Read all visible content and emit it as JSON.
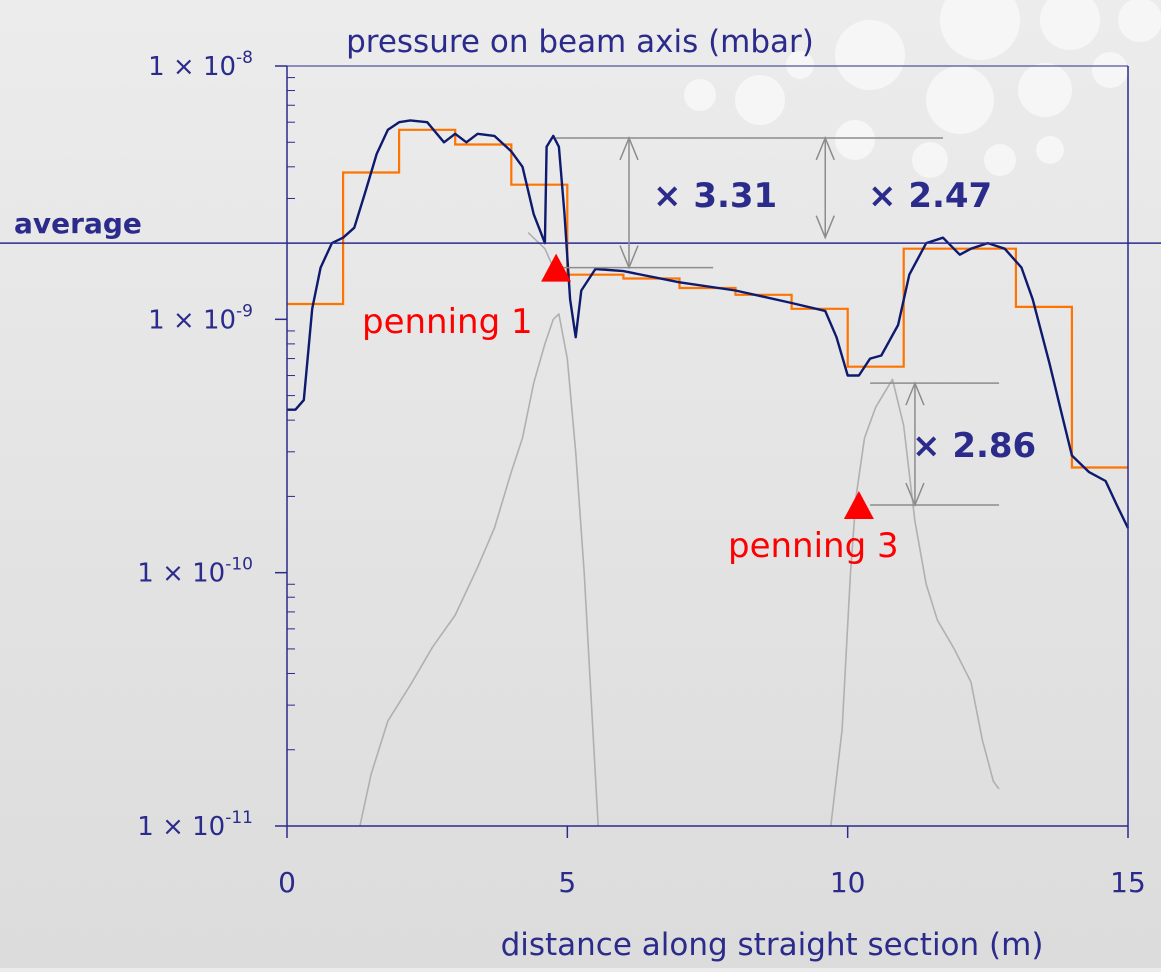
{
  "chart_data": {
    "type": "line",
    "title": "pressure on beam axis (mbar)",
    "xlabel": "distance along straight section (m)",
    "ylabel": "",
    "xlim": [
      0,
      15
    ],
    "ylim_log": [
      1e-11,
      1e-08
    ],
    "y_scale": "log",
    "x_ticks": [
      "0",
      "5",
      "10",
      "15"
    ],
    "y_ticks": [
      {
        "value": 1e-08,
        "base": "1 × 10",
        "exp": "-8"
      },
      {
        "value": 1e-09,
        "base": "1 × 10",
        "exp": "-9"
      },
      {
        "value": 1e-10,
        "base": "1 × 10",
        "exp": "-10"
      },
      {
        "value": 1e-11,
        "base": "1 × 10",
        "exp": "-11"
      }
    ],
    "average": {
      "label": "average",
      "value": 2e-09
    },
    "series": [
      {
        "kind": "pressure-profile",
        "color": "#0d1a6e",
        "points": [
          [
            0.0,
            4.4e-10
          ],
          [
            0.15,
            4.4e-10
          ],
          [
            0.3,
            4.8e-10
          ],
          [
            0.45,
            1.1e-09
          ],
          [
            0.6,
            1.6e-09
          ],
          [
            0.8,
            2e-09
          ],
          [
            1.0,
            2.1e-09
          ],
          [
            1.2,
            2.3e-09
          ],
          [
            1.4,
            3.2e-09
          ],
          [
            1.6,
            4.5e-09
          ],
          [
            1.8,
            5.6e-09
          ],
          [
            2.0,
            6e-09
          ],
          [
            2.2,
            6.1e-09
          ],
          [
            2.5,
            6e-09
          ],
          [
            2.8,
            5e-09
          ],
          [
            3.0,
            5.4e-09
          ],
          [
            3.2,
            5e-09
          ],
          [
            3.4,
            5.4e-09
          ],
          [
            3.7,
            5.3e-09
          ],
          [
            4.0,
            4.6e-09
          ],
          [
            4.2,
            4e-09
          ],
          [
            4.4,
            2.6e-09
          ],
          [
            4.6,
            2e-09
          ],
          [
            4.63,
            4.8e-09
          ],
          [
            4.75,
            5.3e-09
          ],
          [
            4.85,
            4.8e-09
          ],
          [
            4.95,
            2.6e-09
          ],
          [
            5.05,
            1.2e-09
          ],
          [
            5.15,
            8.5e-10
          ],
          [
            5.25,
            1.3e-09
          ],
          [
            5.5,
            1.58e-09
          ],
          [
            6.0,
            1.55e-09
          ],
          [
            7.0,
            1.4e-09
          ],
          [
            8.0,
            1.3e-09
          ],
          [
            9.0,
            1.16e-09
          ],
          [
            9.6,
            1.08e-09
          ],
          [
            9.8,
            8.5e-10
          ],
          [
            10.0,
            6e-10
          ],
          [
            10.2,
            6e-10
          ],
          [
            10.4,
            7e-10
          ],
          [
            10.6,
            7.2e-10
          ],
          [
            10.9,
            9.5e-10
          ],
          [
            11.1,
            1.5e-09
          ],
          [
            11.4,
            2e-09
          ],
          [
            11.7,
            2.1e-09
          ],
          [
            12.0,
            1.8e-09
          ],
          [
            12.2,
            1.9e-09
          ],
          [
            12.5,
            2e-09
          ],
          [
            12.8,
            1.9e-09
          ],
          [
            13.1,
            1.6e-09
          ],
          [
            13.3,
            1.2e-09
          ],
          [
            13.6,
            6.7e-10
          ],
          [
            13.8,
            4.4e-10
          ],
          [
            14.0,
            2.9e-10
          ],
          [
            14.3,
            2.5e-10
          ],
          [
            14.6,
            2.3e-10
          ],
          [
            14.8,
            1.85e-10
          ],
          [
            15.0,
            1.5e-10
          ]
        ]
      },
      {
        "kind": "segment-average",
        "color": "#ff7300",
        "steps": [
          [
            0,
            1,
            1.15e-09
          ],
          [
            1,
            2,
            3.8e-09
          ],
          [
            2,
            3,
            5.6e-09
          ],
          [
            3,
            4,
            4.9e-09
          ],
          [
            4,
            5,
            3.4e-09
          ],
          [
            5,
            6,
            1.5e-09
          ],
          [
            6,
            7,
            1.45e-09
          ],
          [
            7,
            8,
            1.33e-09
          ],
          [
            8,
            9,
            1.25e-09
          ],
          [
            9,
            10,
            1.1e-09
          ],
          [
            10,
            11,
            6.5e-10
          ],
          [
            11,
            13,
            1.9e-09
          ],
          [
            13,
            14,
            1.12e-09
          ],
          [
            14,
            15,
            2.6e-10
          ]
        ]
      },
      {
        "kind": "pump-1-contribution",
        "color": "#b0b0b0",
        "points": [
          [
            1.3,
            1e-11
          ],
          [
            1.5,
            1.6e-11
          ],
          [
            1.8,
            2.6e-11
          ],
          [
            2.2,
            3.6e-11
          ],
          [
            2.6,
            5.1e-11
          ],
          [
            3.0,
            6.8e-11
          ],
          [
            3.4,
            1.05e-10
          ],
          [
            3.7,
            1.5e-10
          ],
          [
            4.0,
            2.5e-10
          ],
          [
            4.2,
            3.4e-10
          ],
          [
            4.4,
            5.6e-10
          ],
          [
            4.6,
            8e-10
          ],
          [
            4.75,
            1e-09
          ],
          [
            4.85,
            1.05e-09
          ],
          [
            5.0,
            7e-10
          ],
          [
            5.15,
            3e-10
          ],
          [
            5.3,
            1e-10
          ],
          [
            5.45,
            2.5e-11
          ],
          [
            5.55,
            1e-11
          ]
        ]
      },
      {
        "kind": "pump-3-contribution",
        "color": "#b0b0b0",
        "points": [
          [
            4.3,
            2.2e-09
          ],
          [
            4.6,
            1.9e-09
          ],
          [
            4.75,
            1.6e-09
          ],
          [
            4.9,
            1.5e-09
          ],
          [
            9.7,
            1e-11
          ],
          [
            9.9,
            2.4e-11
          ],
          [
            10.05,
            1e-10
          ],
          [
            10.15,
            2e-10
          ],
          [
            10.3,
            3.4e-10
          ],
          [
            10.5,
            4.5e-10
          ],
          [
            10.8,
            5.8e-10
          ],
          [
            11.0,
            3.8e-10
          ],
          [
            11.2,
            1.6e-10
          ],
          [
            11.4,
            9e-11
          ],
          [
            11.6,
            6.5e-11
          ],
          [
            11.9,
            5e-11
          ],
          [
            12.2,
            3.7e-11
          ],
          [
            12.4,
            2.2e-11
          ],
          [
            12.6,
            1.5e-11
          ],
          [
            12.7,
            1.4e-11
          ]
        ]
      }
    ],
    "annotations": {
      "penning": [
        {
          "label": "penning 1",
          "x": 4.8,
          "y": 1.6e-09
        },
        {
          "label": "penning 3",
          "x": 10.2,
          "y": 1.85e-10
        }
      ],
      "ratios": [
        {
          "label": "× 3.31",
          "x": 6.1,
          "y_top": 5.2e-09,
          "y_bottom": 1.6e-09
        },
        {
          "label": "× 2.47",
          "x": 9.6,
          "y_top": 5.2e-09,
          "y_bottom": 2.1e-09
        },
        {
          "label": "× 2.86",
          "x": 11.2,
          "y_top": 5.6e-10,
          "y_bottom": 1.85e-10
        }
      ]
    },
    "grid": false,
    "legend": "none"
  }
}
